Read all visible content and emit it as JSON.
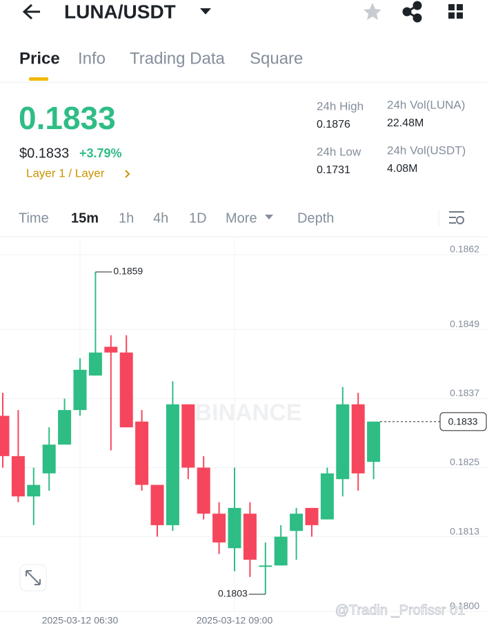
{
  "header": {
    "pair": "LUNA/USDT"
  },
  "tabs": [
    "Price",
    "Info",
    "Trading Data",
    "Square"
  ],
  "ticker": {
    "price": "0.1833",
    "usd_price": "$0.1833",
    "change": "+3.79%",
    "tags": "Layer 1 / Layer"
  },
  "stats": [
    {
      "label": "24h High",
      "value": "0.1876"
    },
    {
      "label": "24h Vol(LUNA)",
      "value": "22.48M"
    },
    {
      "label": "24h Low",
      "value": "0.1731"
    },
    {
      "label": "24h Vol(USDT)",
      "value": "4.08M"
    }
  ],
  "intervals": [
    "Time",
    "15m",
    "1h",
    "4h",
    "1D",
    "More",
    "Depth"
  ],
  "chart_data": {
    "type": "candlestick",
    "watermark": "BINANCE",
    "categories": [
      null,
      null,
      null,
      null,
      null,
      "2025-03-12 06:30",
      null,
      null,
      null,
      null,
      null,
      null,
      null,
      null,
      null,
      "2025-03-12 09:00",
      null,
      null,
      null,
      null,
      null,
      null,
      null,
      null,
      null
    ],
    "open": [
      0.1834,
      0.1827,
      0.182,
      0.1824,
      0.1829,
      0.1835,
      0.1841,
      0.1846,
      0.1845,
      0.1833,
      0.1822,
      0.1815,
      0.1836,
      0.1825,
      0.1817,
      0.1811,
      0.1817,
      0.1808,
      0.1808,
      0.1814,
      0.1818,
      0.1816,
      0.1823,
      0.1836,
      0.1826
    ],
    "high": [
      0.1838,
      0.1835,
      0.1825,
      0.1832,
      0.1837,
      0.1844,
      0.1859,
      0.1848,
      0.1848,
      0.1835,
      0.1822,
      0.184,
      0.1836,
      0.1827,
      0.1819,
      0.1825,
      0.1819,
      0.1812,
      0.1815,
      0.1818,
      0.1818,
      0.1825,
      0.1839,
      0.1838,
      0.1833
    ],
    "low": [
      0.1825,
      0.1819,
      0.1815,
      0.1821,
      0.1829,
      0.1834,
      0.1841,
      0.1828,
      0.1832,
      0.1821,
      0.1813,
      0.1814,
      0.1823,
      0.1816,
      0.181,
      0.1807,
      0.1806,
      0.1803,
      0.1808,
      0.1809,
      0.1813,
      0.1816,
      0.182,
      0.1821,
      0.1823
    ],
    "close": [
      0.1827,
      0.182,
      0.1822,
      0.1829,
      0.1835,
      0.1842,
      0.1845,
      0.1845,
      0.1832,
      0.1822,
      0.1815,
      0.1836,
      0.1825,
      0.1817,
      0.1812,
      0.1818,
      0.1809,
      0.1808,
      0.1813,
      0.1817,
      0.1815,
      0.1824,
      0.1836,
      0.1824,
      0.1833
    ],
    "up_color": "#2ebd85",
    "down_color": "#f6465d",
    "ylim": [
      0.18,
      0.1865
    ],
    "yticks": [
      0.1862,
      0.1849,
      0.1837,
      0.1825,
      0.1813,
      {
        "value": 0.18,
        "label": "0.1800"
      }
    ],
    "grid": true
  },
  "watermark_user": "@Tradin _Profissr 01"
}
